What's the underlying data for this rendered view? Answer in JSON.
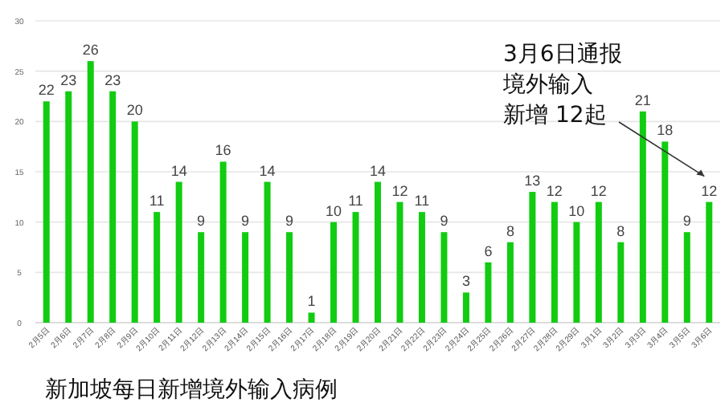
{
  "chart_data": {
    "type": "bar",
    "title": "新加坡每日新增境外输入病例",
    "categories": [
      "2月5日",
      "2月6日",
      "2月7日",
      "2月8日",
      "2月9日",
      "2月10日",
      "2月11日",
      "2月12日",
      "2月13日",
      "2月14日",
      "2月15日",
      "2月16日",
      "2月17日",
      "2月18日",
      "2月19日",
      "2月20日",
      "2月21日",
      "2月22日",
      "2月23日",
      "2月24日",
      "2月25日",
      "2月26日",
      "2月27日",
      "2月28日",
      "2月29日",
      "3月1日",
      "3月2日",
      "3月3日",
      "3月4日",
      "3月5日",
      "3月6日"
    ],
    "values": [
      22,
      23,
      26,
      23,
      20,
      11,
      14,
      9,
      16,
      9,
      14,
      9,
      1,
      10,
      11,
      14,
      12,
      11,
      9,
      3,
      6,
      8,
      13,
      12,
      10,
      12,
      8,
      21,
      18,
      9,
      12
    ],
    "color": "#11cc11",
    "ylim": [
      0,
      30
    ],
    "yticks": [
      0,
      5,
      10,
      15,
      20,
      25,
      30
    ],
    "grid": "y",
    "data_labels": true,
    "annotations": [
      "3月6日通报",
      "境外输入",
      "新增 12起"
    ]
  }
}
